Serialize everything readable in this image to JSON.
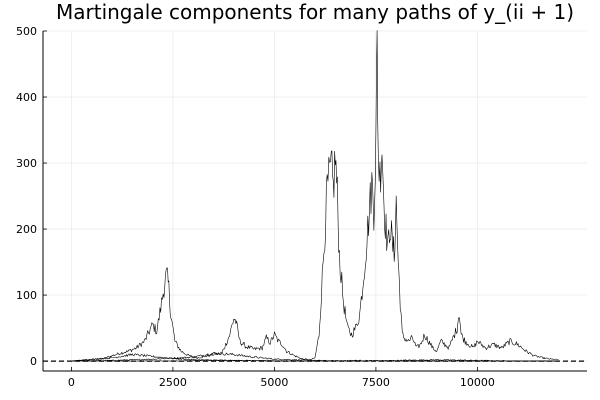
{
  "chart_data": {
    "type": "line",
    "title": "Martingale components for many paths of y_(ii + 1)",
    "xlabel": "",
    "ylabel": "",
    "xlim": [
      -700,
      12700
    ],
    "ylim": [
      -15,
      500
    ],
    "xticks": [
      0,
      2500,
      5000,
      7500,
      10000
    ],
    "xtick_labels": [
      "0",
      "2500",
      "5000",
      "7500",
      "10000"
    ],
    "yticks": [
      0,
      100,
      200,
      300,
      400,
      500
    ],
    "ytick_labels": [
      "0",
      "100",
      "200",
      "300",
      "400",
      "500"
    ],
    "grid": true,
    "legend": "none",
    "line_color": "#000000",
    "reference_line": {
      "y": 0,
      "style": "dashed"
    },
    "series": [
      {
        "x": [
          0,
          400,
          800,
          1000,
          1200,
          1400,
          1600,
          1800,
          2000,
          2100,
          2200,
          2300,
          2350,
          2400,
          2450,
          2550,
          2700,
          2900,
          3100,
          3300,
          3500,
          3700,
          3800,
          3900,
          4000,
          4050,
          4150,
          4300,
          4500,
          4700,
          4800,
          4900,
          5000,
          5100,
          5200,
          5300,
          5500,
          5700,
          5900,
          6000,
          6100,
          6200,
          6300,
          6400,
          6450,
          6500,
          6550,
          6600,
          6700,
          6800,
          6900,
          7000,
          7100,
          7200,
          7300,
          7400,
          7450,
          7500,
          7530,
          7560,
          7600,
          7650,
          7700,
          7750,
          7800,
          7850,
          7900,
          7950,
          8000,
          8050,
          8100,
          8150,
          8200,
          8300,
          8400,
          8500,
          8600,
          8700,
          8800,
          8900,
          9000,
          9100,
          9200,
          9300,
          9400,
          9500,
          9550,
          9600,
          9700,
          9800,
          9900,
          10000,
          10100,
          10200,
          10400,
          10600,
          10800,
          11000,
          11200,
          11400,
          11600,
          11800,
          12000
        ],
        "y": [
          0,
          2,
          4,
          8,
          12,
          15,
          20,
          30,
          55,
          45,
          80,
          120,
          130,
          110,
          70,
          30,
          15,
          8,
          5,
          7,
          10,
          12,
          25,
          40,
          65,
          60,
          30,
          22,
          18,
          20,
          35,
          28,
          40,
          30,
          25,
          15,
          8,
          3,
          2,
          5,
          40,
          150,
          260,
          290,
          260,
          310,
          250,
          160,
          90,
          50,
          40,
          50,
          70,
          130,
          200,
          270,
          230,
          330,
          480,
          310,
          280,
          330,
          240,
          200,
          170,
          210,
          180,
          160,
          240,
          150,
          90,
          40,
          35,
          30,
          35,
          20,
          25,
          40,
          30,
          20,
          15,
          30,
          25,
          20,
          35,
          50,
          75,
          40,
          30,
          25,
          20,
          30,
          25,
          20,
          25,
          20,
          30,
          25,
          15,
          8,
          5,
          3,
          2
        ]
      },
      {
        "x": [
          0,
          1000,
          2000,
          3000,
          3500,
          4000,
          4500,
          5000,
          6000,
          7000,
          8000,
          9000,
          10000,
          11000,
          12000
        ],
        "y": [
          0,
          1,
          3,
          6,
          12,
          10,
          6,
          3,
          1,
          0,
          1,
          2,
          1,
          0,
          0
        ]
      },
      {
        "x": [
          0,
          1000,
          1500,
          2000,
          2500,
          3000,
          4000,
          5000,
          6000,
          7000,
          8000,
          9000,
          10000,
          11000,
          12000
        ],
        "y": [
          0,
          5,
          10,
          7,
          4,
          2,
          1,
          0,
          0,
          1,
          0,
          0,
          0,
          0,
          0
        ]
      },
      {
        "x": [
          0,
          2000,
          4000,
          6000,
          8000,
          10000,
          12000
        ],
        "y": [
          0,
          0,
          1,
          0,
          0,
          0,
          0
        ]
      }
    ]
  }
}
